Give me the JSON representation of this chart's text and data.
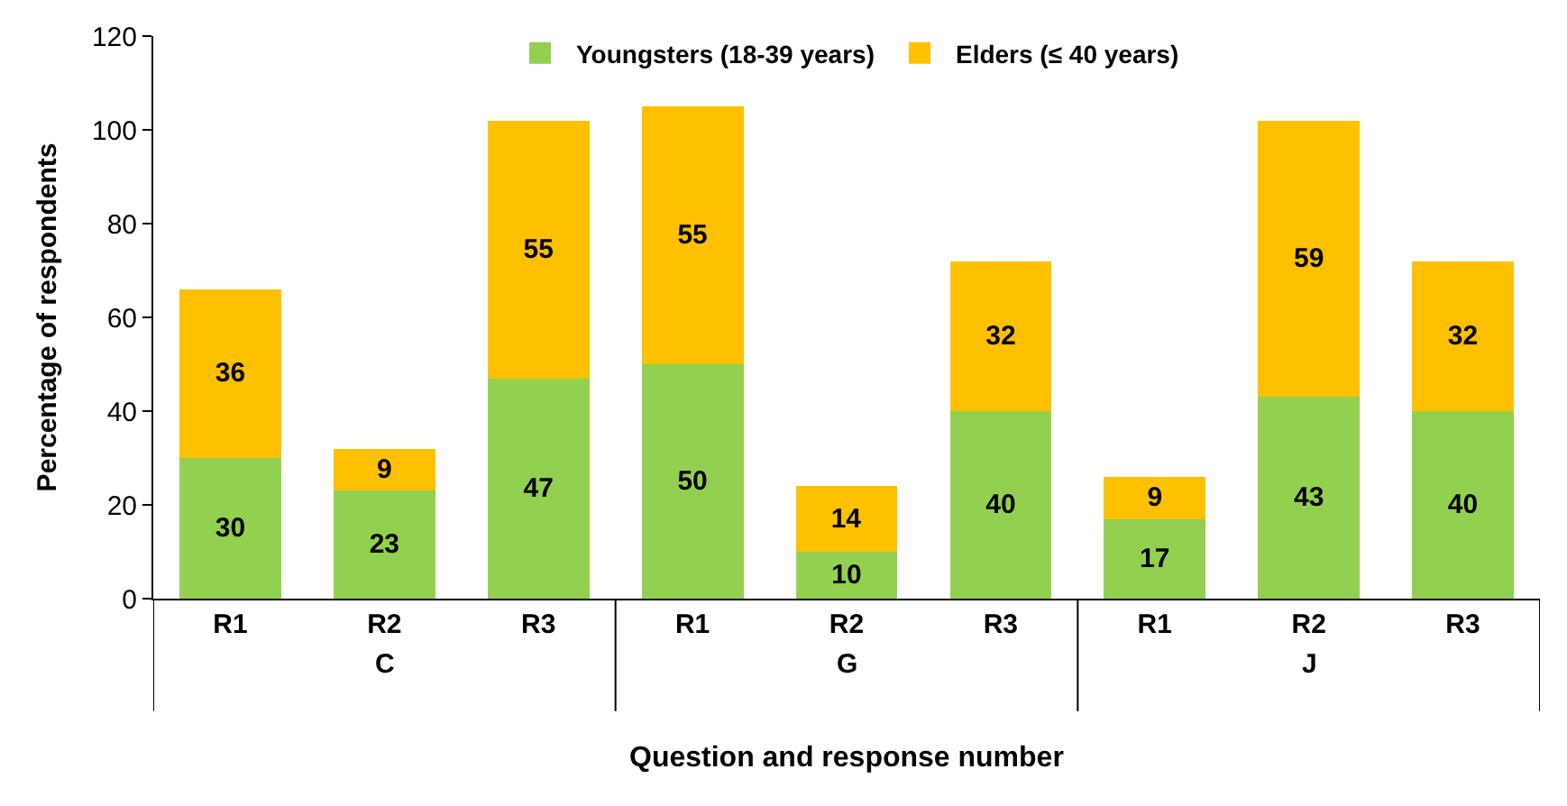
{
  "chart_data": {
    "type": "bar",
    "stacked": true,
    "xlabel": "Question and response number",
    "ylabel": "Percentage of respondents",
    "categories": [
      "R1",
      "R2",
      "R3",
      "R1",
      "R2",
      "R3",
      "R1",
      "R2",
      "R3"
    ],
    "series": [
      {
        "name": "Youngsters (18-39 years)",
        "color": "#92d050",
        "values": [
          30,
          23,
          47,
          50,
          10,
          40,
          17,
          43,
          40
        ]
      },
      {
        "name": "Elders (≤ 40 years)",
        "color": "#ffc000",
        "values": [
          36,
          9,
          55,
          55,
          14,
          32,
          9,
          59,
          32
        ]
      }
    ],
    "annotations": [
      "C",
      "G",
      "J"
    ],
    "ylim": [
      0,
      120
    ],
    "yticks": [
      0,
      20,
      40,
      60,
      80,
      100,
      120
    ],
    "data_labels": true,
    "legend": "top"
  }
}
